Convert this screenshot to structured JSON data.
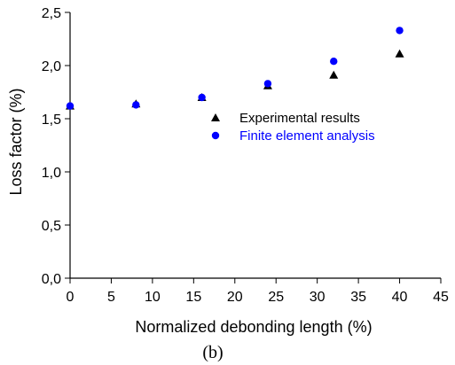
{
  "chart_data": {
    "type": "scatter",
    "xlabel": "Normalized debonding length (%)",
    "ylabel": "Loss factor (%)",
    "caption": "(b)",
    "xlim": [
      0,
      45
    ],
    "ylim": [
      0,
      2.5
    ],
    "x_ticks": [
      "0",
      "5",
      "10",
      "15",
      "20",
      "25",
      "30",
      "35",
      "40",
      "45"
    ],
    "y_ticks": [
      "0,0",
      "0,5",
      "1,0",
      "1,5",
      "2,0",
      "2,5"
    ],
    "grid": false,
    "legend_position": "inside-right",
    "series": [
      {
        "name": "Experimental results",
        "marker": "triangle",
        "color": "#000000",
        "x": [
          0,
          8,
          16,
          24,
          32,
          40
        ],
        "y": [
          1.62,
          1.64,
          1.7,
          1.81,
          1.91,
          2.11
        ]
      },
      {
        "name": "Finite element analysis",
        "marker": "circle",
        "color": "#0000ff",
        "x": [
          0,
          8,
          16,
          24,
          32,
          40
        ],
        "y": [
          1.62,
          1.63,
          1.7,
          1.83,
          2.04,
          2.33
        ]
      }
    ]
  }
}
